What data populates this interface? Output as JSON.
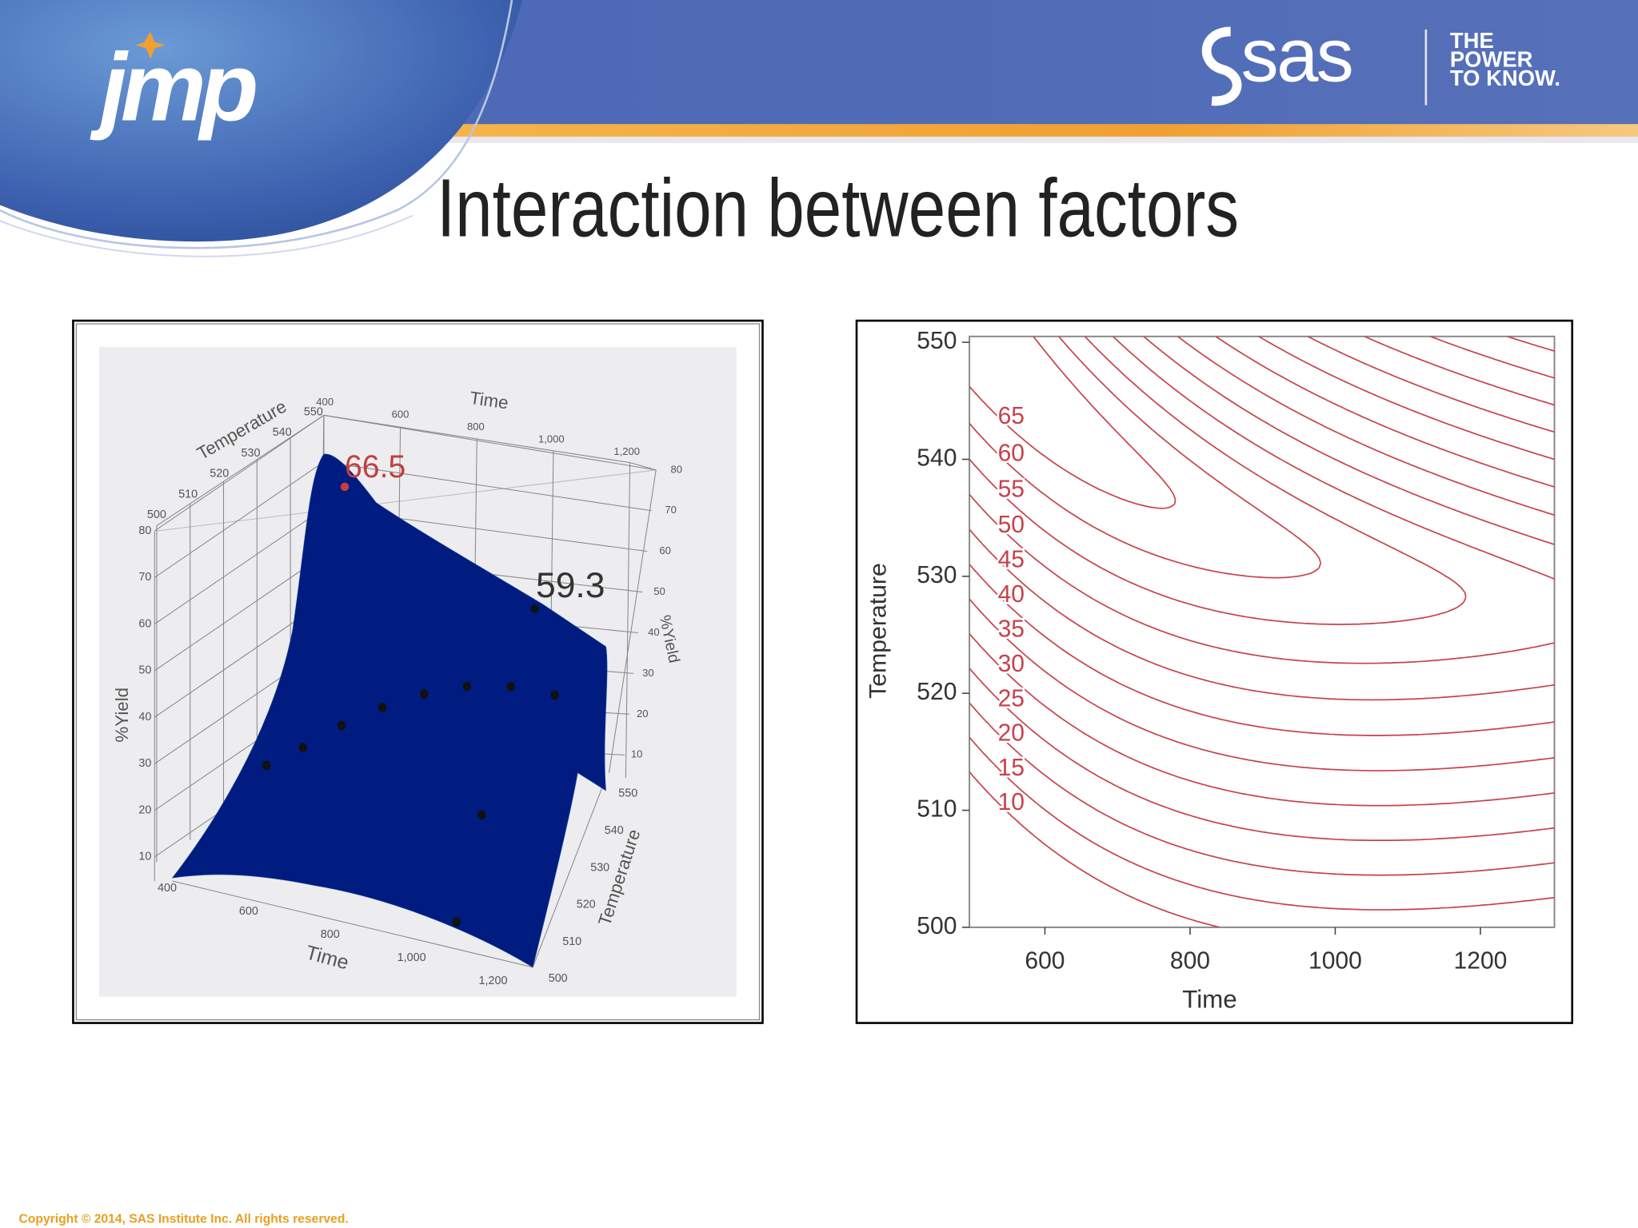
{
  "header": {
    "logo": "jmp",
    "brand": "sas",
    "tagline": [
      "THE",
      "POWER",
      "TO KNOW."
    ],
    "title": "Interaction between factors"
  },
  "footer": {
    "copyright": "Copyright © 2014, SAS Institute Inc. All rights reserved."
  },
  "chart_data": [
    {
      "type": "surface",
      "x_label": "Time",
      "y_label": "Temperature",
      "z_label": "%Yield",
      "xlim": [
        400,
        1200
      ],
      "xticks": [
        400,
        600,
        800,
        {
          "value": 1000,
          "label": "1,000"
        },
        {
          "value": 1200,
          "label": "1,200"
        }
      ],
      "ylim": [
        500,
        550
      ],
      "yticks": [
        500,
        510,
        520,
        530,
        540,
        550
      ],
      "zlim": [
        10,
        80
      ],
      "zticks": [
        10,
        20,
        30,
        40,
        50,
        60,
        70,
        80
      ],
      "annotations": [
        66.5,
        59.3
      ],
      "grid": true
    },
    {
      "type": "contour",
      "x_label": "Time",
      "y_label": "Temperature",
      "xlim": [
        496,
        1302
      ],
      "xticks": [
        600,
        800,
        1000,
        1200
      ],
      "ylim": [
        500,
        550.5
      ],
      "yticks": [
        500,
        510,
        520,
        530,
        540,
        550
      ],
      "levels": [
        10,
        15,
        20,
        25,
        30,
        35,
        40,
        45,
        50,
        55,
        60,
        65
      ],
      "color": "#c8414b"
    }
  ]
}
